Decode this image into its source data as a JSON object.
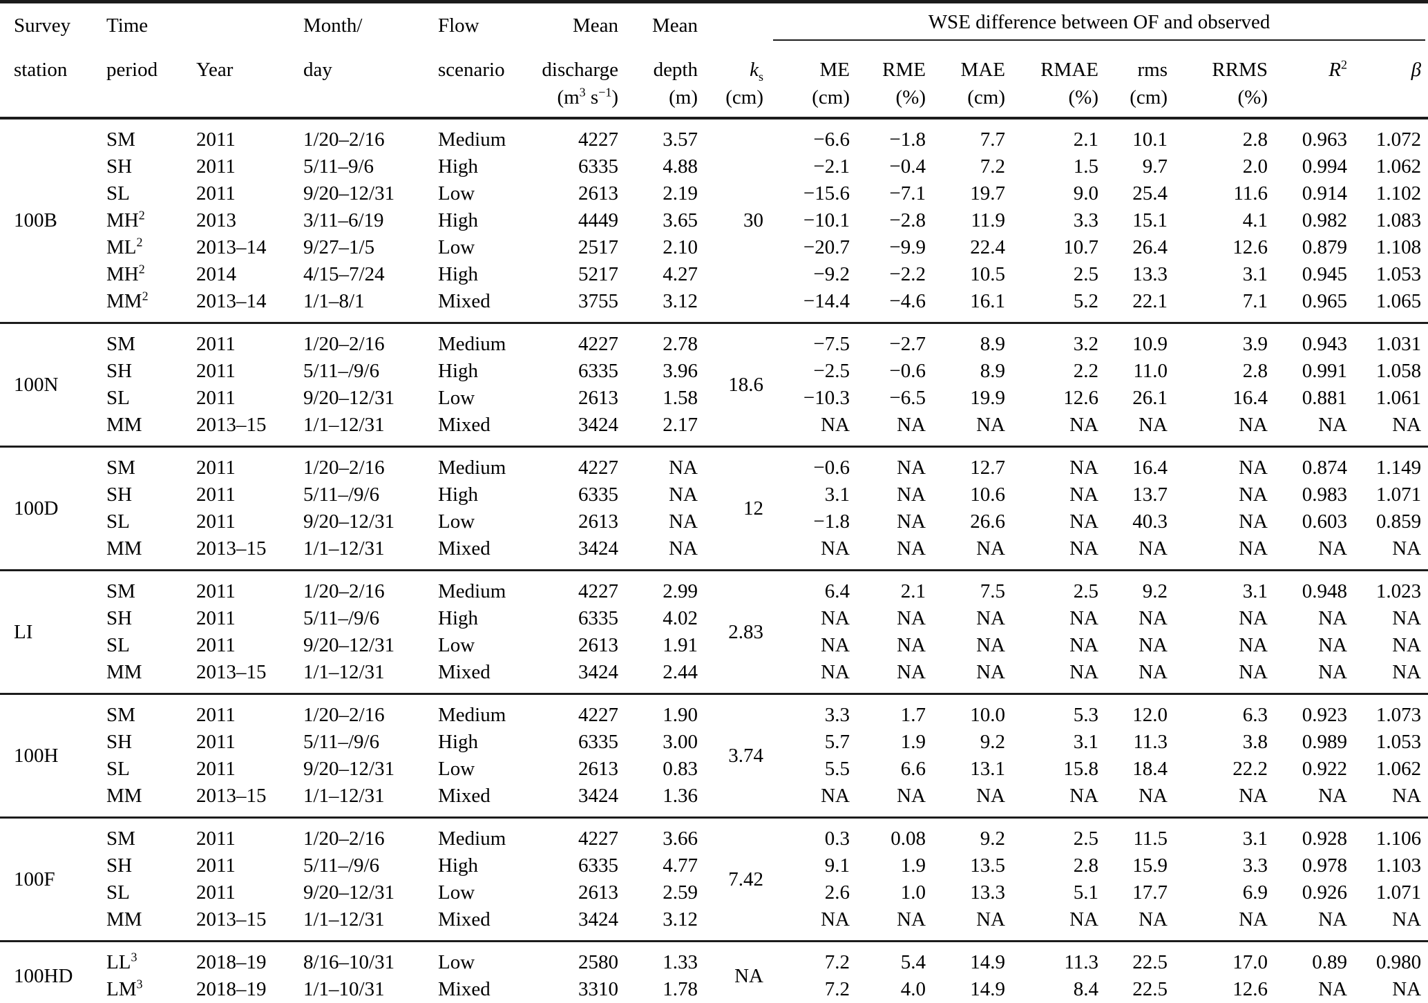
{
  "table": {
    "header": {
      "survey_l1": "Survey",
      "survey_l2": "station",
      "time_l1": "Time",
      "time_l2": "period",
      "year": "Year",
      "month_l1": "Month/",
      "month_l2": "day",
      "flow_l1": "Flow",
      "flow_l2": "scenario",
      "discharge_l1": "Mean",
      "discharge_l2": "discharge",
      "discharge_unit_p1": "(m",
      "discharge_unit_s1": "3",
      "discharge_unit_p2": " s",
      "discharge_unit_s2": "−1",
      "discharge_unit_p3": ")",
      "depth_l1": "Mean",
      "depth_l2": "depth",
      "depth_unit": "(m)",
      "ks_base": "k",
      "ks_sub": "s",
      "ks_unit": "(cm)",
      "wse_group": "WSE difference between OF and observed",
      "me": "ME",
      "me_unit": "(cm)",
      "rme": "RME",
      "rme_unit": "(%)",
      "mae": "MAE",
      "mae_unit": "(cm)",
      "rmae": "RMAE",
      "rmae_unit": "(%)",
      "rms": "rms",
      "rms_unit": "(cm)",
      "rrms": "RRMS",
      "rrms_unit": "(%)",
      "r2_base": "R",
      "r2_sup": "2",
      "beta": "β"
    },
    "blocks": [
      {
        "station": "100B",
        "ks": "30",
        "rows": [
          {
            "period": "SM",
            "sup": "",
            "cells": [
              "2011",
              "1/20–2/16",
              "Medium",
              "4227",
              "3.57",
              "−6.6",
              "−1.8",
              "7.7",
              "2.1",
              "10.1",
              "2.8",
              "0.963",
              "1.072"
            ]
          },
          {
            "period": "SH",
            "sup": "",
            "cells": [
              "2011",
              "5/11–9/6",
              "High",
              "6335",
              "4.88",
              "−2.1",
              "−0.4",
              "7.2",
              "1.5",
              "9.7",
              "2.0",
              "0.994",
              "1.062"
            ]
          },
          {
            "period": "SL",
            "sup": "",
            "cells": [
              "2011",
              "9/20–12/31",
              "Low",
              "2613",
              "2.19",
              "−15.6",
              "−7.1",
              "19.7",
              "9.0",
              "25.4",
              "11.6",
              "0.914",
              "1.102"
            ]
          },
          {
            "period": "MH",
            "sup": "2",
            "cells": [
              "2013",
              "3/11–6/19",
              "High",
              "4449",
              "3.65",
              "−10.1",
              "−2.8",
              "11.9",
              "3.3",
              "15.1",
              "4.1",
              "0.982",
              "1.083"
            ]
          },
          {
            "period": "ML",
            "sup": "2",
            "cells": [
              "2013–14",
              "9/27–1/5",
              "Low",
              "2517",
              "2.10",
              "−20.7",
              "−9.9",
              "22.4",
              "10.7",
              "26.4",
              "12.6",
              "0.879",
              "1.108"
            ]
          },
          {
            "period": "MH",
            "sup": "2",
            "cells": [
              "2014",
              "4/15–7/24",
              "High",
              "5217",
              "4.27",
              "−9.2",
              "−2.2",
              "10.5",
              "2.5",
              "13.3",
              "3.1",
              "0.945",
              "1.053"
            ]
          },
          {
            "period": "MM",
            "sup": "2",
            "cells": [
              "2013–14",
              "1/1–8/1",
              "Mixed",
              "3755",
              "3.12",
              "−14.4",
              "−4.6",
              "16.1",
              "5.2",
              "22.1",
              "7.1",
              "0.965",
              "1.065"
            ]
          }
        ]
      },
      {
        "station": "100N",
        "ks": "18.6",
        "rows": [
          {
            "period": "SM",
            "sup": "",
            "cells": [
              "2011",
              "1/20–2/16",
              "Medium",
              "4227",
              "2.78",
              "−7.5",
              "−2.7",
              "8.9",
              "3.2",
              "10.9",
              "3.9",
              "0.943",
              "1.031"
            ]
          },
          {
            "period": "SH",
            "sup": "",
            "cells": [
              "2011",
              "5/11–/9/6",
              "High",
              "6335",
              "3.96",
              "−2.5",
              "−0.6",
              "8.9",
              "2.2",
              "11.0",
              "2.8",
              "0.991",
              "1.058"
            ]
          },
          {
            "period": "SL",
            "sup": "",
            "cells": [
              "2011",
              "9/20–12/31",
              "Low",
              "2613",
              "1.58",
              "−10.3",
              "−6.5",
              "19.9",
              "12.6",
              "26.1",
              "16.4",
              "0.881",
              "1.061"
            ]
          },
          {
            "period": "MM",
            "sup": "",
            "cells": [
              "2013–15",
              "1/1–12/31",
              "Mixed",
              "3424",
              "2.17",
              "NA",
              "NA",
              "NA",
              "NA",
              "NA",
              "NA",
              "NA",
              "NA"
            ]
          }
        ]
      },
      {
        "station": "100D",
        "ks": "12",
        "rows": [
          {
            "period": "SM",
            "sup": "",
            "cells": [
              "2011",
              "1/20–2/16",
              "Medium",
              "4227",
              "NA",
              "−0.6",
              "NA",
              "12.7",
              "NA",
              "16.4",
              "NA",
              "0.874",
              "1.149"
            ]
          },
          {
            "period": "SH",
            "sup": "",
            "cells": [
              "2011",
              "5/11–/9/6",
              "High",
              "6335",
              "NA",
              "3.1",
              "NA",
              "10.6",
              "NA",
              "13.7",
              "NA",
              "0.983",
              "1.071"
            ]
          },
          {
            "period": "SL",
            "sup": "",
            "cells": [
              "2011",
              "9/20–12/31",
              "Low",
              "2613",
              "NA",
              "−1.8",
              "NA",
              "26.6",
              "NA",
              "40.3",
              "NA",
              "0.603",
              "0.859"
            ]
          },
          {
            "period": "MM",
            "sup": "",
            "cells": [
              "2013–15",
              "1/1–12/31",
              "Mixed",
              "3424",
              "NA",
              "NA",
              "NA",
              "NA",
              "NA",
              "NA",
              "NA",
              "NA",
              "NA"
            ]
          }
        ]
      },
      {
        "station": "LI",
        "ks": "2.83",
        "rows": [
          {
            "period": "SM",
            "sup": "",
            "cells": [
              "2011",
              "1/20–2/16",
              "Medium",
              "4227",
              "2.99",
              "6.4",
              "2.1",
              "7.5",
              "2.5",
              "9.2",
              "3.1",
              "0.948",
              "1.023"
            ]
          },
          {
            "period": "SH",
            "sup": "",
            "cells": [
              "2011",
              "5/11–/9/6",
              "High",
              "6335",
              "4.02",
              "NA",
              "NA",
              "NA",
              "NA",
              "NA",
              "NA",
              "NA",
              "NA"
            ]
          },
          {
            "period": "SL",
            "sup": "",
            "cells": [
              "2011",
              "9/20–12/31",
              "Low",
              "2613",
              "1.91",
              "NA",
              "NA",
              "NA",
              "NA",
              "NA",
              "NA",
              "NA",
              "NA"
            ]
          },
          {
            "period": "MM",
            "sup": "",
            "cells": [
              "2013–15",
              "1/1–12/31",
              "Mixed",
              "3424",
              "2.44",
              "NA",
              "NA",
              "NA",
              "NA",
              "NA",
              "NA",
              "NA",
              "NA"
            ]
          }
        ]
      },
      {
        "station": "100H",
        "ks": "3.74",
        "rows": [
          {
            "period": "SM",
            "sup": "",
            "cells": [
              "2011",
              "1/20–2/16",
              "Medium",
              "4227",
              "1.90",
              "3.3",
              "1.7",
              "10.0",
              "5.3",
              "12.0",
              "6.3",
              "0.923",
              "1.073"
            ]
          },
          {
            "period": "SH",
            "sup": "",
            "cells": [
              "2011",
              "5/11–/9/6",
              "High",
              "6335",
              "3.00",
              "5.7",
              "1.9",
              "9.2",
              "3.1",
              "11.3",
              "3.8",
              "0.989",
              "1.053"
            ]
          },
          {
            "period": "SL",
            "sup": "",
            "cells": [
              "2011",
              "9/20–12/31",
              "Low",
              "2613",
              "0.83",
              "5.5",
              "6.6",
              "13.1",
              "15.8",
              "18.4",
              "22.2",
              "0.922",
              "1.062"
            ]
          },
          {
            "period": "MM",
            "sup": "",
            "cells": [
              "2013–15",
              "1/1–12/31",
              "Mixed",
              "3424",
              "1.36",
              "NA",
              "NA",
              "NA",
              "NA",
              "NA",
              "NA",
              "NA",
              "NA"
            ]
          }
        ]
      },
      {
        "station": "100F",
        "ks": "7.42",
        "rows": [
          {
            "period": "SM",
            "sup": "",
            "cells": [
              "2011",
              "1/20–2/16",
              "Medium",
              "4227",
              "3.66",
              "0.3",
              "0.08",
              "9.2",
              "2.5",
              "11.5",
              "3.1",
              "0.928",
              "1.106"
            ]
          },
          {
            "period": "SH",
            "sup": "",
            "cells": [
              "2011",
              "5/11–/9/6",
              "High",
              "6335",
              "4.77",
              "9.1",
              "1.9",
              "13.5",
              "2.8",
              "15.9",
              "3.3",
              "0.978",
              "1.103"
            ]
          },
          {
            "period": "SL",
            "sup": "",
            "cells": [
              "2011",
              "9/20–12/31",
              "Low",
              "2613",
              "2.59",
              "2.6",
              "1.0",
              "13.3",
              "5.1",
              "17.7",
              "6.9",
              "0.926",
              "1.071"
            ]
          },
          {
            "period": "MM",
            "sup": "",
            "cells": [
              "2013–15",
              "1/1–12/31",
              "Mixed",
              "3424",
              "3.12",
              "NA",
              "NA",
              "NA",
              "NA",
              "NA",
              "NA",
              "NA",
              "NA"
            ]
          }
        ]
      },
      {
        "station": "100HD",
        "ks": "NA",
        "rows": [
          {
            "period": "LL",
            "sup": "3",
            "cells": [
              "2018–19",
              "8/16–10/31",
              "Low",
              "2580",
              "1.33",
              "7.2",
              "5.4",
              "14.9",
              "11.3",
              "22.5",
              "17.0",
              "0.89",
              "0.980"
            ]
          },
          {
            "period": "LM",
            "sup": "3",
            "cells": [
              "2018–19",
              "1/1–10/31",
              "Mixed",
              "3310",
              "1.78",
              "7.2",
              "4.0",
              "14.9",
              "8.4",
              "22.5",
              "12.6",
              "NA",
              "NA"
            ]
          }
        ]
      }
    ]
  }
}
